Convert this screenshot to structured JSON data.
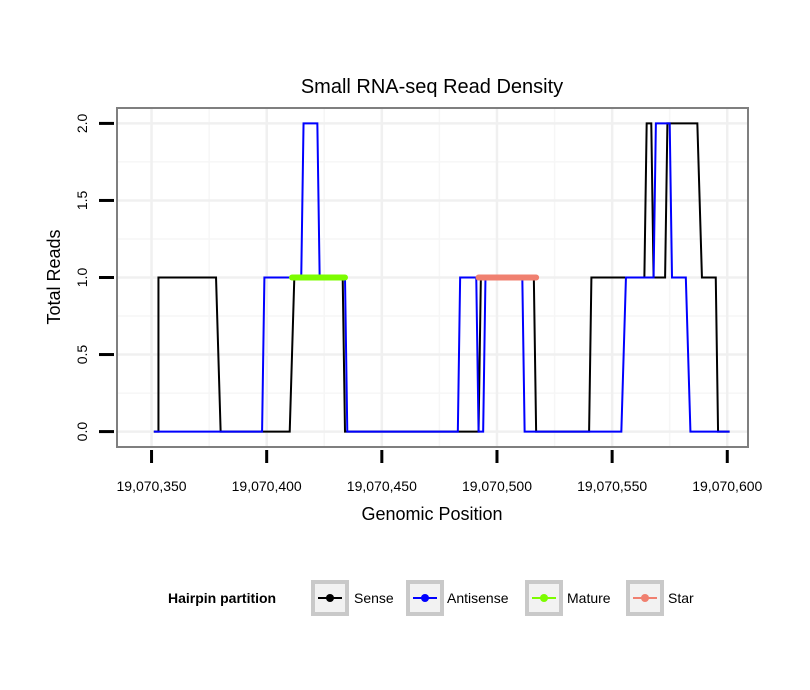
{
  "chart_data": {
    "type": "line",
    "title": "Small RNA-seq Read Density",
    "xlabel": "Genomic Position",
    "ylabel": "Total Reads",
    "xlim": [
      19070335,
      19070609
    ],
    "ylim": [
      -0.1,
      2.1
    ],
    "x_ticks": [
      19070350,
      19070400,
      19070450,
      19070500,
      19070550,
      19070600
    ],
    "x_tick_labels": [
      "19,070,350",
      "19,070,400",
      "19,070,450",
      "19,070,500",
      "19,070,550",
      "19,070,600"
    ],
    "y_ticks": [
      0.0,
      0.5,
      1.0,
      1.5,
      2.0
    ],
    "y_tick_labels": [
      "0.0",
      "0.5",
      "1.0",
      "1.5",
      "2.0"
    ],
    "grid": true,
    "legend_title": "Hairpin partition",
    "legend_position": "bottom",
    "series": [
      {
        "name": "Sense",
        "color": "#000000",
        "x": [
          19070351,
          19070353,
          19070353,
          19070378,
          19070380,
          19070410,
          19070412,
          19070433,
          19070434,
          19070492,
          19070493,
          19070516,
          19070517,
          19070540,
          19070541,
          19070564,
          19070565,
          19070567,
          19070568,
          19070573,
          19070574,
          19070587,
          19070589,
          19070595,
          19070596,
          19070601
        ],
        "y": [
          0,
          0,
          1,
          1,
          0,
          0,
          1,
          1,
          0,
          0,
          1,
          1,
          0,
          0,
          1,
          1,
          2,
          2,
          1,
          1,
          2,
          2,
          1,
          1,
          0,
          0
        ]
      },
      {
        "name": "Antisense",
        "color": "#0000ff",
        "x": [
          19070351,
          19070398,
          19070399,
          19070415,
          19070416,
          19070422,
          19070423,
          19070434,
          19070435,
          19070483,
          19070484,
          19070491,
          19070492,
          19070494,
          19070495,
          19070511,
          19070512,
          19070554,
          19070556,
          19070568,
          19070569,
          19070575,
          19070576,
          19070582,
          19070584,
          19070601
        ],
        "y": [
          0,
          0,
          1,
          1,
          2,
          2,
          1,
          1,
          0,
          0,
          1,
          1,
          0,
          0,
          1,
          1,
          0,
          0,
          1,
          1,
          2,
          2,
          1,
          1,
          0,
          0
        ]
      },
      {
        "name": "Mature",
        "color": "#7cfc00",
        "x": [
          19070411,
          19070434
        ],
        "y": [
          1,
          1
        ]
      },
      {
        "name": "Star",
        "color": "#f08070",
        "x": [
          19070492,
          19070517
        ],
        "y": [
          1,
          1
        ]
      }
    ]
  }
}
